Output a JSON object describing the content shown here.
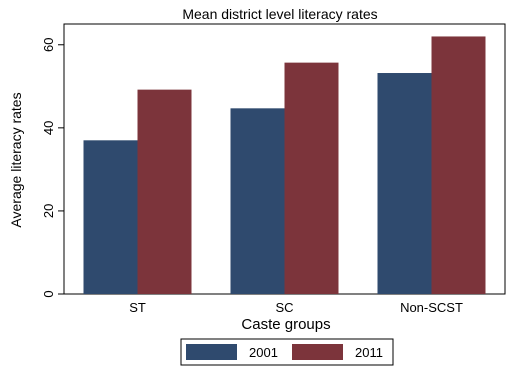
{
  "chart_data": {
    "type": "bar",
    "title": "Mean district level literacy rates",
    "xlabel": "Caste groups",
    "ylabel": "Average literacy rates",
    "categories": [
      "ST",
      "SC",
      "Non-SCST"
    ],
    "series": [
      {
        "name": "2001",
        "color": "#2f4a6e",
        "values": [
          37.0,
          44.7,
          53.2
        ]
      },
      {
        "name": "2011",
        "color": "#7c343b",
        "values": [
          49.2,
          55.7,
          62.0
        ]
      }
    ],
    "yticks": [
      0,
      20,
      40,
      60
    ],
    "ylim": [
      0,
      65
    ],
    "grid": false,
    "legend": "bottom"
  }
}
